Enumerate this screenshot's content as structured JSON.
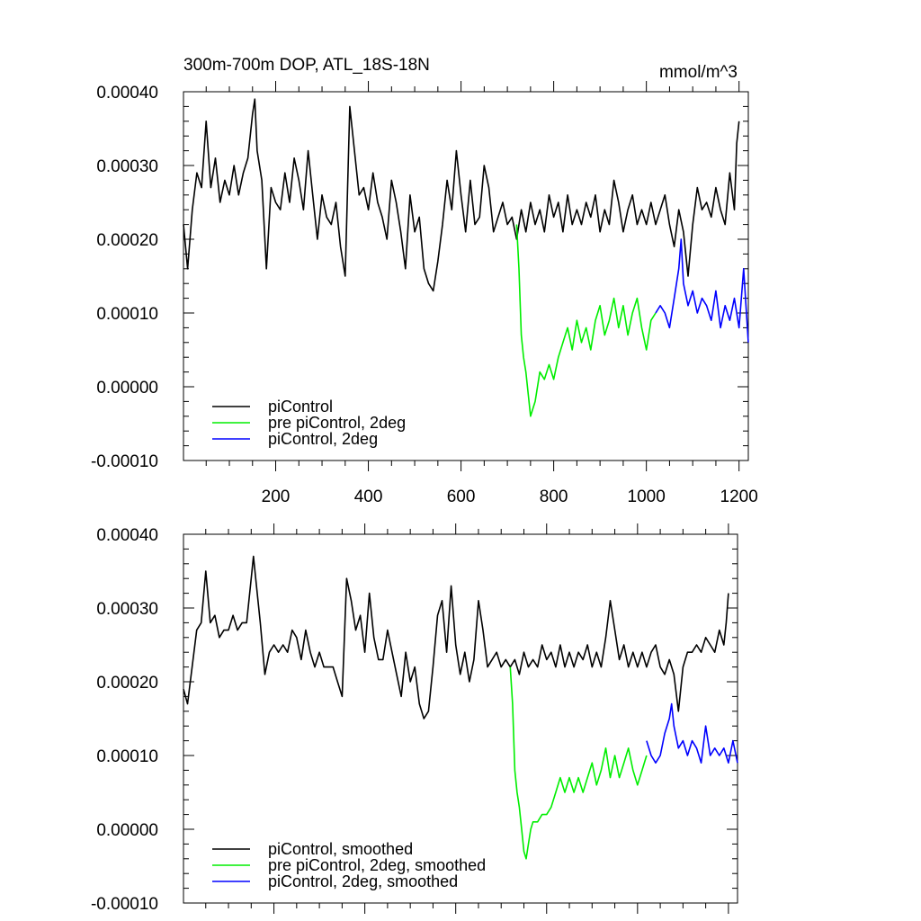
{
  "chart_data": [
    {
      "type": "line",
      "title": "300m-700m DOP, ATL_18S-18N",
      "units": "mmol/m^3",
      "xlim": [
        1,
        1220
      ],
      "ylim": [
        -0.0001,
        0.0004
      ],
      "x_tick_values": [
        200,
        400,
        600,
        800,
        1000,
        1200
      ],
      "x_tick_labels": [
        "200",
        "400",
        "600",
        "800",
        "1000",
        "1200"
      ],
      "y_tick_values": [
        -0.0001,
        0,
        0.0001,
        0.0002,
        0.0003,
        0.0004
      ],
      "y_tick_labels": [
        "-0.00010",
        "0.00000",
        "0.00010",
        "0.00020",
        "0.00030",
        "0.00040"
      ],
      "legend_position": "bottom-left",
      "series": [
        {
          "name": "piControl",
          "color": "#000000",
          "x": [
            1,
            10,
            20,
            30,
            40,
            50,
            60,
            70,
            80,
            90,
            100,
            110,
            120,
            130,
            140,
            150,
            155,
            160,
            170,
            180,
            190,
            200,
            210,
            220,
            230,
            240,
            250,
            260,
            270,
            280,
            290,
            300,
            310,
            320,
            330,
            340,
            350,
            360,
            370,
            380,
            390,
            400,
            410,
            420,
            430,
            440,
            450,
            460,
            470,
            480,
            490,
            500,
            510,
            520,
            530,
            540,
            550,
            560,
            570,
            580,
            590,
            600,
            610,
            620,
            630,
            640,
            650,
            660,
            670,
            680,
            690,
            700,
            710,
            720,
            730,
            740,
            750,
            760,
            770,
            780,
            790,
            800,
            810,
            820,
            830,
            840,
            850,
            860,
            870,
            880,
            890,
            900,
            910,
            920,
            930,
            940,
            950,
            960,
            970,
            980,
            990,
            1000,
            1010,
            1020,
            1030,
            1040,
            1050,
            1060,
            1070,
            1080,
            1090,
            1100,
            1110,
            1120,
            1130,
            1140,
            1150,
            1160,
            1170,
            1180,
            1190,
            1195,
            1200
          ],
          "values": [
            0.00022,
            0.00016,
            0.00024,
            0.00029,
            0.00027,
            0.00036,
            0.00027,
            0.00031,
            0.00025,
            0.00028,
            0.00026,
            0.0003,
            0.00026,
            0.00029,
            0.00031,
            0.00037,
            0.00039,
            0.00032,
            0.00028,
            0.00016,
            0.00027,
            0.00025,
            0.00024,
            0.00029,
            0.00025,
            0.00031,
            0.00028,
            0.00024,
            0.00032,
            0.00026,
            0.0002,
            0.00026,
            0.00023,
            0.00022,
            0.00025,
            0.00019,
            0.00015,
            0.00038,
            0.00032,
            0.00026,
            0.00027,
            0.00024,
            0.00029,
            0.00025,
            0.00023,
            0.0002,
            0.00028,
            0.00025,
            0.00021,
            0.00016,
            0.00026,
            0.00021,
            0.00023,
            0.00016,
            0.00014,
            0.00013,
            0.00017,
            0.00022,
            0.00028,
            0.00024,
            0.00032,
            0.00026,
            0.00021,
            0.00028,
            0.00022,
            0.00023,
            0.0003,
            0.00027,
            0.00021,
            0.00023,
            0.00025,
            0.00022,
            0.00023,
            0.0002,
            0.00024,
            0.00021,
            0.00025,
            0.00022,
            0.00024,
            0.00021,
            0.00026,
            0.00023,
            0.00025,
            0.00021,
            0.00026,
            0.00022,
            0.00024,
            0.00022,
            0.00025,
            0.00023,
            0.00026,
            0.00021,
            0.00024,
            0.00022,
            0.00028,
            0.00025,
            0.00021,
            0.00024,
            0.00026,
            0.00022,
            0.00024,
            0.00022,
            0.00025,
            0.00022,
            0.00024,
            0.00026,
            0.00022,
            0.00019,
            0.00024,
            0.00021,
            0.00015,
            0.00022,
            0.00027,
            0.00024,
            0.00025,
            0.00023,
            0.00027,
            0.00024,
            0.00022,
            0.00029,
            0.00024,
            0.00033,
            0.00036
          ]
        },
        {
          "name": "pre piControl, 2deg",
          "color": "#00ee00",
          "x": [
            720,
            725,
            730,
            735,
            740,
            745,
            750,
            755,
            760,
            765,
            770,
            780,
            790,
            800,
            810,
            820,
            830,
            840,
            850,
            860,
            870,
            880,
            890,
            900,
            910,
            920,
            930,
            940,
            950,
            960,
            970,
            980,
            990,
            1000,
            1010,
            1020
          ],
          "values": [
            0.00022,
            0.00016,
            7e-05,
            4e-05,
            2e-05,
            -1e-05,
            -4e-05,
            -3e-05,
            -2e-05,
            0.0,
            2e-05,
            1e-05,
            3e-05,
            1e-05,
            4e-05,
            6e-05,
            8e-05,
            5e-05,
            9e-05,
            6e-05,
            8e-05,
            5e-05,
            9e-05,
            0.00011,
            7e-05,
            9e-05,
            0.00012,
            8e-05,
            0.00011,
            7e-05,
            0.0001,
            0.00012,
            8e-05,
            5e-05,
            9e-05,
            0.0001
          ]
        },
        {
          "name": "piControl, 2deg",
          "color": "#0000ff",
          "x": [
            1020,
            1030,
            1040,
            1050,
            1060,
            1070,
            1075,
            1080,
            1090,
            1100,
            1110,
            1120,
            1130,
            1140,
            1150,
            1160,
            1170,
            1180,
            1190,
            1200,
            1210,
            1220
          ],
          "values": [
            0.0001,
            0.00011,
            0.0001,
            8e-05,
            0.00012,
            0.00016,
            0.0002,
            0.00014,
            0.00011,
            0.00013,
            0.0001,
            0.00012,
            0.00011,
            9e-05,
            0.00013,
            8e-05,
            0.00011,
            9e-05,
            0.00012,
            8e-05,
            0.00016,
            6e-05
          ]
        }
      ]
    },
    {
      "type": "line",
      "title": "",
      "units": "",
      "xlim": [
        1,
        1220
      ],
      "ylim": [
        -0.0001,
        0.0004
      ],
      "x_tick_values": [
        200,
        400,
        600,
        800,
        1000,
        1200
      ],
      "x_tick_labels": [],
      "y_tick_values": [
        -0.0001,
        0,
        0.0001,
        0.0002,
        0.0003,
        0.0004
      ],
      "y_tick_labels": [
        "-0.00010",
        "0.00000",
        "0.00010",
        "0.00020",
        "0.00030",
        "0.00040"
      ],
      "legend_position": "bottom-left",
      "series": [
        {
          "name": "piControl, smoothed",
          "color": "#000000",
          "x": [
            1,
            10,
            20,
            30,
            40,
            50,
            60,
            70,
            80,
            90,
            100,
            110,
            120,
            130,
            140,
            150,
            155,
            160,
            170,
            180,
            190,
            200,
            210,
            220,
            230,
            240,
            250,
            260,
            270,
            280,
            290,
            300,
            310,
            320,
            330,
            340,
            350,
            360,
            370,
            380,
            390,
            400,
            410,
            420,
            430,
            440,
            450,
            460,
            470,
            480,
            490,
            500,
            510,
            520,
            530,
            540,
            550,
            560,
            570,
            580,
            590,
            600,
            610,
            620,
            630,
            640,
            650,
            660,
            670,
            680,
            690,
            700,
            710,
            720,
            730,
            740,
            750,
            760,
            770,
            780,
            790,
            800,
            810,
            820,
            830,
            840,
            850,
            860,
            870,
            880,
            890,
            900,
            910,
            920,
            930,
            940,
            950,
            960,
            970,
            980,
            990,
            1000,
            1010,
            1020,
            1030,
            1040,
            1050,
            1060,
            1070,
            1080,
            1090,
            1100,
            1110,
            1120,
            1130,
            1140,
            1150,
            1160,
            1170,
            1180,
            1190,
            1195,
            1200
          ],
          "values": [
            0.00019,
            0.00017,
            0.00022,
            0.00027,
            0.00028,
            0.00035,
            0.00028,
            0.00029,
            0.00026,
            0.00027,
            0.00027,
            0.00029,
            0.00027,
            0.00028,
            0.00028,
            0.00034,
            0.00037,
            0.00034,
            0.00028,
            0.00021,
            0.00024,
            0.00025,
            0.00024,
            0.00025,
            0.00024,
            0.00027,
            0.00026,
            0.00023,
            0.00027,
            0.00024,
            0.00022,
            0.00024,
            0.00022,
            0.00022,
            0.00022,
            0.0002,
            0.00018,
            0.00034,
            0.00031,
            0.00027,
            0.00029,
            0.00024,
            0.00032,
            0.00026,
            0.00023,
            0.00023,
            0.00027,
            0.00024,
            0.00021,
            0.00018,
            0.00024,
            0.0002,
            0.00022,
            0.00017,
            0.00015,
            0.00016,
            0.00022,
            0.00029,
            0.00031,
            0.00024,
            0.00033,
            0.00025,
            0.00021,
            0.00024,
            0.0002,
            0.00023,
            0.00031,
            0.00027,
            0.00022,
            0.00023,
            0.00024,
            0.00022,
            0.00023,
            0.00022,
            0.00023,
            0.00021,
            0.00024,
            0.00022,
            0.00023,
            0.00022,
            0.00025,
            0.00023,
            0.00024,
            0.00022,
            0.00025,
            0.00022,
            0.00024,
            0.00022,
            0.00024,
            0.00023,
            0.00025,
            0.00022,
            0.00024,
            0.00022,
            0.00026,
            0.00031,
            0.00027,
            0.00023,
            0.00025,
            0.00022,
            0.00024,
            0.00022,
            0.00024,
            0.00022,
            0.00024,
            0.00025,
            0.00022,
            0.00021,
            0.00023,
            0.00021,
            0.00016,
            0.00022,
            0.00024,
            0.00024,
            0.00025,
            0.00024,
            0.00026,
            0.00025,
            0.00024,
            0.00027,
            0.00025,
            0.00028,
            0.00032
          ]
        },
        {
          "name": "pre piControl, 2deg, smoothed",
          "color": "#00ee00",
          "x": [
            720,
            725,
            730,
            735,
            740,
            745,
            750,
            755,
            760,
            765,
            770,
            780,
            790,
            800,
            810,
            820,
            830,
            840,
            850,
            860,
            870,
            880,
            890,
            900,
            910,
            920,
            930,
            940,
            950,
            960,
            970,
            980,
            990,
            1000,
            1010,
            1020
          ],
          "values": [
            0.00022,
            0.00017,
            8e-05,
            5e-05,
            3e-05,
            0.0,
            -3e-05,
            -4e-05,
            -2e-05,
            0.0,
            1e-05,
            1e-05,
            2e-05,
            2e-05,
            3e-05,
            5e-05,
            7e-05,
            5e-05,
            7e-05,
            5e-05,
            7e-05,
            5e-05,
            7e-05,
            9e-05,
            6e-05,
            8e-05,
            0.00011,
            7e-05,
            0.0001,
            7e-05,
            9e-05,
            0.00011,
            8e-05,
            6e-05,
            8e-05,
            0.0001
          ]
        },
        {
          "name": "piControl, 2deg, smoothed",
          "color": "#0000ff",
          "x": [
            1020,
            1030,
            1040,
            1050,
            1060,
            1070,
            1075,
            1080,
            1090,
            1100,
            1110,
            1120,
            1130,
            1140,
            1150,
            1160,
            1170,
            1180,
            1190,
            1200,
            1210,
            1220
          ],
          "values": [
            0.00012,
            0.0001,
            9e-05,
            0.0001,
            0.00013,
            0.00015,
            0.00017,
            0.00014,
            0.00011,
            0.00012,
            0.0001,
            0.00012,
            0.00011,
            9e-05,
            0.00014,
            0.0001,
            0.00011,
            0.0001,
            0.00011,
            9e-05,
            0.00012,
            9e-05
          ]
        }
      ]
    }
  ]
}
